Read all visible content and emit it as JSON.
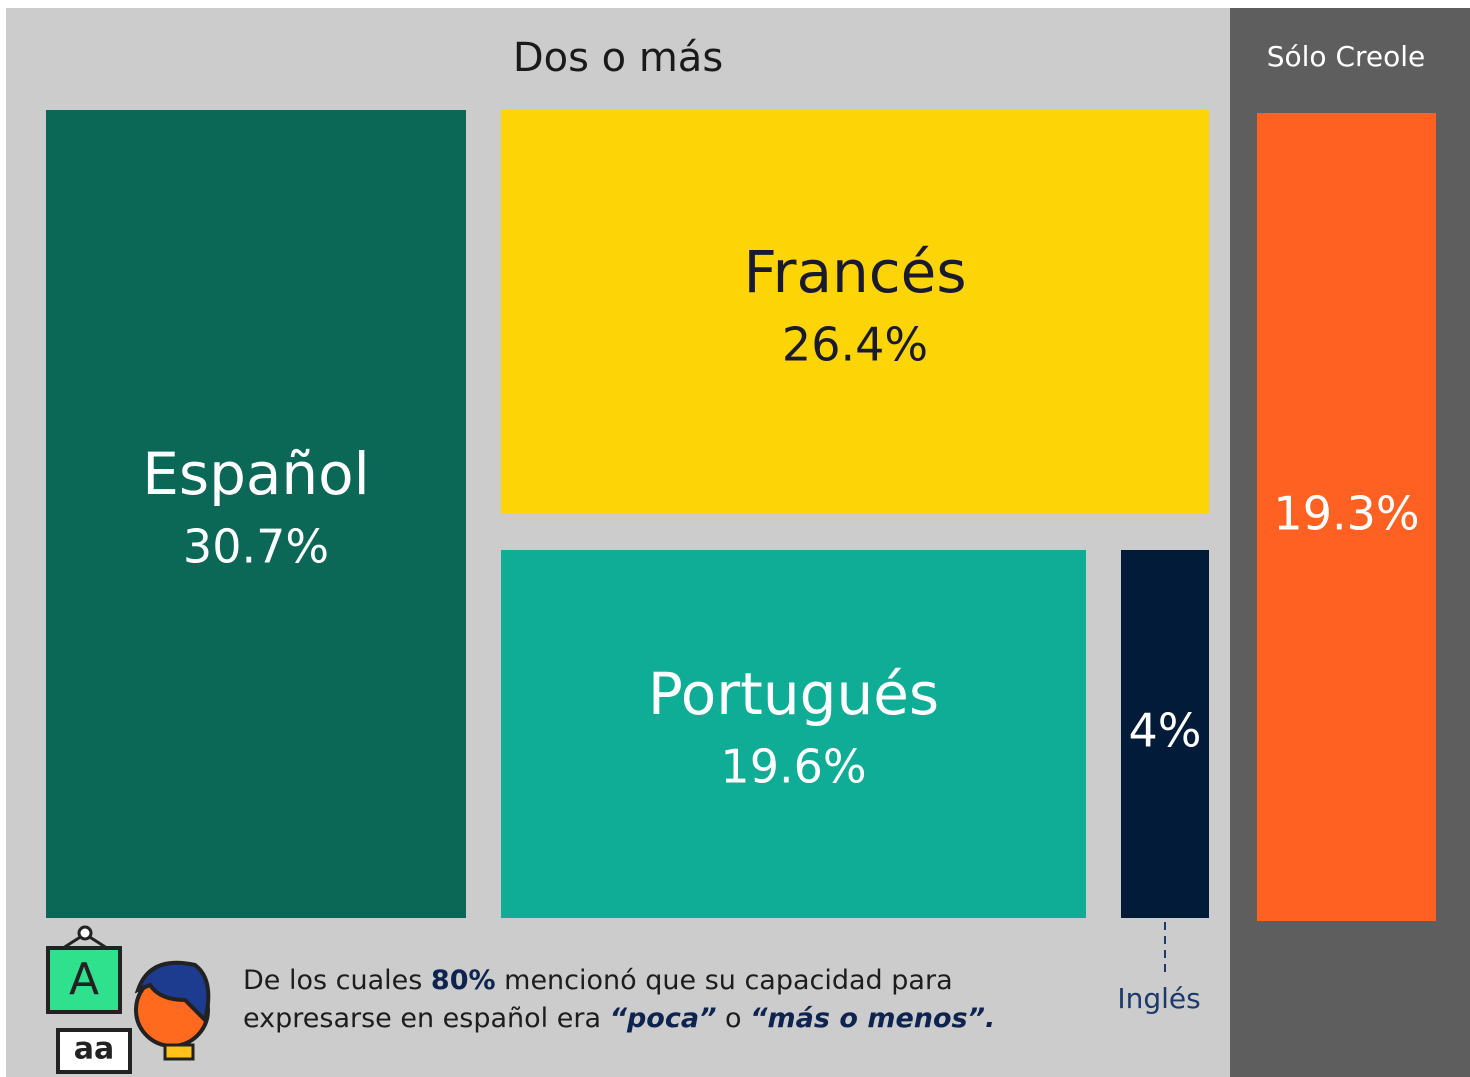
{
  "chart_data": {
    "type": "treemap",
    "groups": [
      {
        "name": "Dos o más",
        "color": "#cccccc",
        "items": [
          {
            "name": "Español",
            "value": 30.7,
            "value_label": "30.7%",
            "color": "#0b6756"
          },
          {
            "name": "Francés",
            "value": 26.4,
            "value_label": "26.4%",
            "color": "#fdd405"
          },
          {
            "name": "Portugués",
            "value": 19.6,
            "value_label": "19.6%",
            "color": "#10ad96"
          },
          {
            "name": "Inglés",
            "value": 4,
            "value_label": "4%",
            "color": "#021b38"
          }
        ]
      },
      {
        "name": "Sólo Creole",
        "color": "#5e5e5e",
        "items": [
          {
            "value": 19.3,
            "value_label": "19.3%",
            "color": "#fe6121"
          }
        ]
      }
    ],
    "note": [
      "De los cuales ",
      "80%",
      " mencionó que su capacidad para expresarse en español era ",
      "“poca”",
      " o ",
      "“más o menos”."
    ]
  }
}
